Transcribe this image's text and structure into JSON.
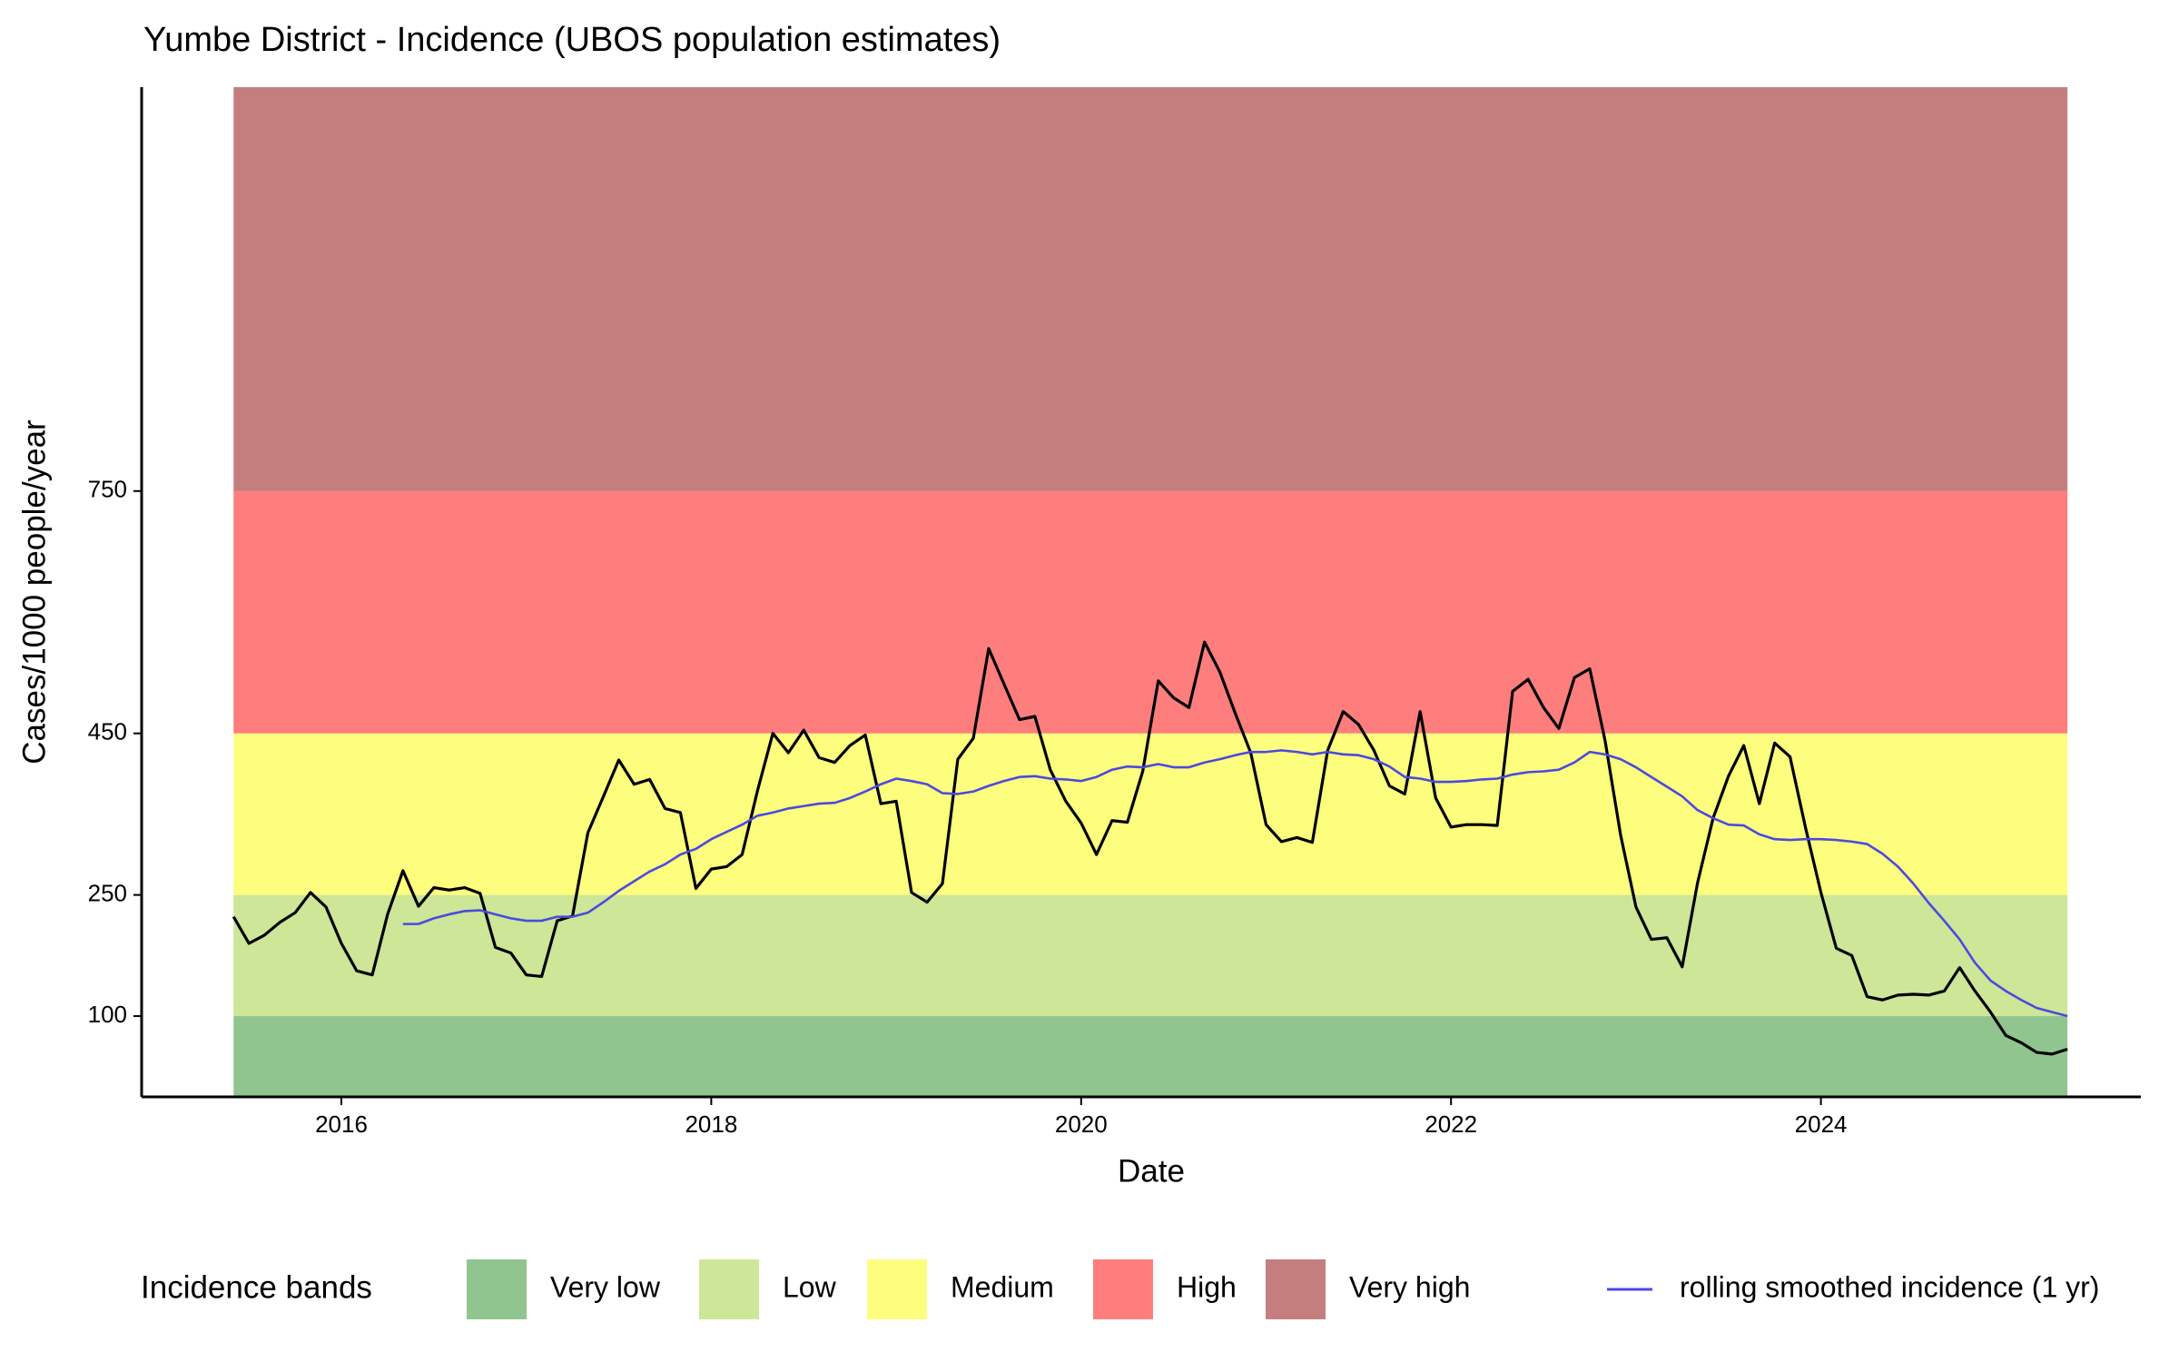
{
  "chart_data": {
    "type": "line",
    "title": "Yumbe District - Incidence (UBOS population estimates)",
    "x_label": "Date",
    "y_label": "Cases/1000 people/year",
    "legend_title": "Incidence bands",
    "legend": "bottom",
    "xlim": [
      2014.92,
      2025.73
    ],
    "ylim": [
      0,
      1250
    ],
    "xticks": [
      2016,
      2018,
      2020,
      2022,
      2024
    ],
    "yticks": [
      100,
      250,
      450,
      750
    ],
    "bands": [
      {
        "name": "Very low",
        "color": "#90c590",
        "range": [
          0,
          100
        ]
      },
      {
        "name": "Low",
        "color": "#cde697",
        "range": [
          100,
          250
        ]
      },
      {
        "name": "Medium",
        "color": "#fdfd7e",
        "range": [
          250,
          450
        ]
      },
      {
        "name": "High",
        "color": "#fe7e7e",
        "range": [
          450,
          750
        ]
      },
      {
        "name": "Very high",
        "color": "#c47e7e",
        "range": [
          750,
          1250
        ]
      }
    ],
    "x": [
      2015.417,
      2015.5,
      2015.583,
      2015.667,
      2015.75,
      2015.833,
      2015.917,
      2016,
      2016.083,
      2016.167,
      2016.25,
      2016.333,
      2016.417,
      2016.5,
      2016.583,
      2016.667,
      2016.75,
      2016.833,
      2016.917,
      2017,
      2017.083,
      2017.167,
      2017.25,
      2017.333,
      2017.417,
      2017.5,
      2017.583,
      2017.667,
      2017.75,
      2017.833,
      2017.917,
      2018,
      2018.083,
      2018.167,
      2018.25,
      2018.333,
      2018.417,
      2018.5,
      2018.583,
      2018.667,
      2018.75,
      2018.833,
      2018.917,
      2019,
      2019.083,
      2019.167,
      2019.25,
      2019.333,
      2019.417,
      2019.5,
      2019.583,
      2019.667,
      2019.75,
      2019.833,
      2019.917,
      2020,
      2020.083,
      2020.167,
      2020.25,
      2020.333,
      2020.417,
      2020.5,
      2020.583,
      2020.667,
      2020.75,
      2020.833,
      2020.917,
      2021,
      2021.083,
      2021.167,
      2021.25,
      2021.333,
      2021.417,
      2021.5,
      2021.583,
      2021.667,
      2021.75,
      2021.833,
      2021.917,
      2022,
      2022.083,
      2022.167,
      2022.25,
      2022.333,
      2022.417,
      2022.5,
      2022.583,
      2022.667,
      2022.75,
      2022.833,
      2022.917,
      2023,
      2023.083,
      2023.167,
      2023.25,
      2023.333,
      2023.417,
      2023.5,
      2023.583,
      2023.667,
      2023.75,
      2023.833,
      2023.917,
      2024,
      2024.083,
      2024.167,
      2024.25,
      2024.333,
      2024.417,
      2024.5,
      2024.583,
      2024.667,
      2024.75,
      2024.833,
      2024.917,
      2025,
      2025.083,
      2025.167,
      2025.25,
      2025.333
    ],
    "series": [
      {
        "color": "#000000",
        "values": [
          223,
          190,
          200,
          216,
          228,
          253,
          235,
          190,
          156,
          151,
          226,
          280,
          236,
          259,
          256,
          259,
          252,
          185,
          178,
          151,
          149,
          218,
          224,
          327,
          372,
          417,
          387,
          393,
          357,
          352,
          258,
          282,
          285,
          300,
          379,
          450,
          426,
          454,
          420,
          414,
          435,
          448,
          363,
          366,
          253,
          241,
          264,
          418,
          444,
          555,
          511,
          467,
          471,
          405,
          366,
          339,
          300,
          342,
          340,
          403,
          515,
          494,
          482,
          563,
          526,
          475,
          426,
          337,
          316,
          321,
          315,
          429,
          477,
          461,
          429,
          385,
          375,
          477,
          370,
          334,
          337,
          337,
          336,
          502,
          517,
          482,
          456,
          519,
          530,
          441,
          324,
          235,
          195,
          197,
          161,
          265,
          345,
          397,
          435,
          363,
          438,
          421,
          333,
          253,
          184,
          175,
          124,
          120,
          126,
          127,
          126,
          131,
          160,
          131,
          105,
          76,
          67,
          55,
          53,
          59
        ]
      },
      {
        "name": "rolling smoothed incidence (1 yr)",
        "color": "#4a4ae0",
        "values": [
          null,
          null,
          null,
          null,
          null,
          null,
          null,
          null,
          null,
          null,
          null,
          214,
          214,
          221,
          226,
          230,
          231,
          226,
          221,
          218,
          218,
          223,
          223,
          228,
          241,
          255,
          267,
          279,
          288,
          300,
          307,
          319,
          328,
          337,
          348,
          352,
          357,
          360,
          363,
          364,
          370,
          378,
          387,
          394,
          391,
          387,
          376,
          375,
          378,
          385,
          391,
          396,
          397,
          394,
          393,
          391,
          396,
          405,
          409,
          408,
          412,
          408,
          408,
          414,
          418,
          423,
          427,
          427,
          429,
          427,
          424,
          427,
          424,
          423,
          418,
          409,
          396,
          394,
          390,
          390,
          391,
          393,
          394,
          399,
          402,
          403,
          405,
          414,
          427,
          424,
          418,
          408,
          396,
          384,
          372,
          355,
          345,
          337,
          336,
          325,
          319,
          318,
          319,
          319,
          318,
          316,
          313,
          301,
          285,
          264,
          240,
          218,
          195,
          166,
          144,
          131,
          120,
          110,
          105,
          100
        ]
      }
    ]
  }
}
